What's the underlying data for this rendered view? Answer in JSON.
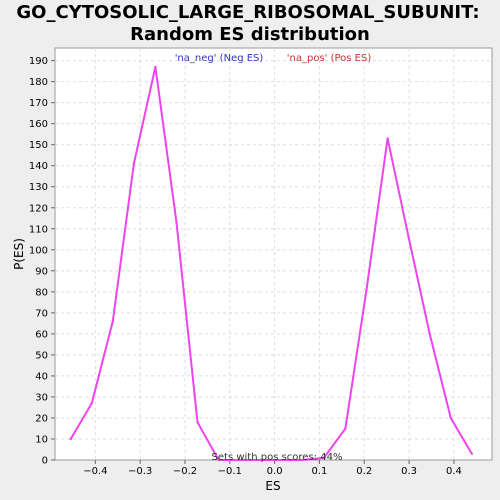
{
  "chart_data": {
    "type": "line",
    "title_line1": "GO_CYTOSOLIC_LARGE_RIBOSOMAL_SUBUNIT:",
    "title_line2": "Random ES distribution",
    "xlabel": "ES",
    "ylabel": "P(ES)",
    "xlim": [
      -0.49,
      0.485
    ],
    "ylim": [
      0,
      196
    ],
    "x_ticks": [
      -0.4,
      -0.3,
      -0.2,
      -0.1,
      0.0,
      0.1,
      0.2,
      0.3,
      0.4
    ],
    "x_tick_labels": [
      "−0.4",
      "−0.3",
      "−0.2",
      "−0.1",
      "0.0",
      "0.1",
      "0.2",
      "0.3",
      "0.4"
    ],
    "y_ticks": [
      0,
      10,
      20,
      30,
      40,
      50,
      60,
      70,
      80,
      90,
      100,
      110,
      120,
      130,
      140,
      150,
      160,
      170,
      180,
      190
    ],
    "grid": true,
    "legend": [
      {
        "label": "'na_neg' (Neg ES)",
        "color": "#3333cc"
      },
      {
        "label": "'na_pos' (Pos ES)",
        "color": "#cc3333"
      }
    ],
    "annotation": "Sets with pos scores: 44%",
    "line_color": "#ee44ee",
    "series": [
      {
        "x": [
          -0.455,
          -0.408,
          -0.361,
          -0.314,
          -0.266,
          -0.219,
          -0.172,
          -0.125,
          -0.078,
          -0.031,
          0.016,
          0.063,
          0.11,
          0.158,
          0.205,
          0.252,
          0.299,
          0.346,
          0.393,
          0.44
        ],
        "values": [
          10,
          27,
          66,
          141,
          187,
          113,
          18,
          0,
          0,
          0,
          0,
          0,
          1,
          15,
          81,
          153,
          106,
          60,
          20,
          3
        ]
      }
    ]
  }
}
